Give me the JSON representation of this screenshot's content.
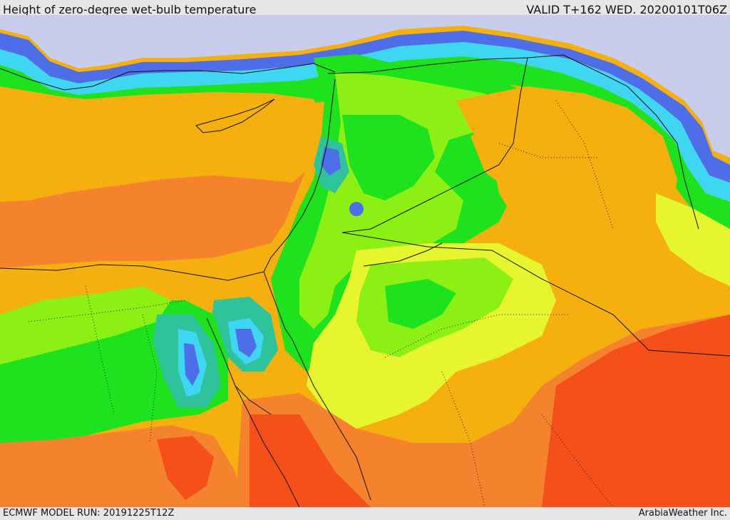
{
  "header": {
    "title": "Height of zero-degree wet-bulb temperature",
    "valid": "VALID T+162 WED. 20200101T06Z"
  },
  "footer": {
    "model_run": "ECMWF MODEL RUN: 20191225T12Z",
    "credit": "ArabiaWeather Inc."
  },
  "colors": {
    "lavender": "#c8cced",
    "blue": "#4d6ee8",
    "cyan": "#3ed6f2",
    "teal": "#2ec39a",
    "green": "#1ee21e",
    "lightgreen": "#8cf014",
    "yellow": "#e6f52d",
    "gold": "#f5d21e",
    "orange": "#f5b00f",
    "darkorange": "#f5822d",
    "red": "#f5501a"
  }
}
